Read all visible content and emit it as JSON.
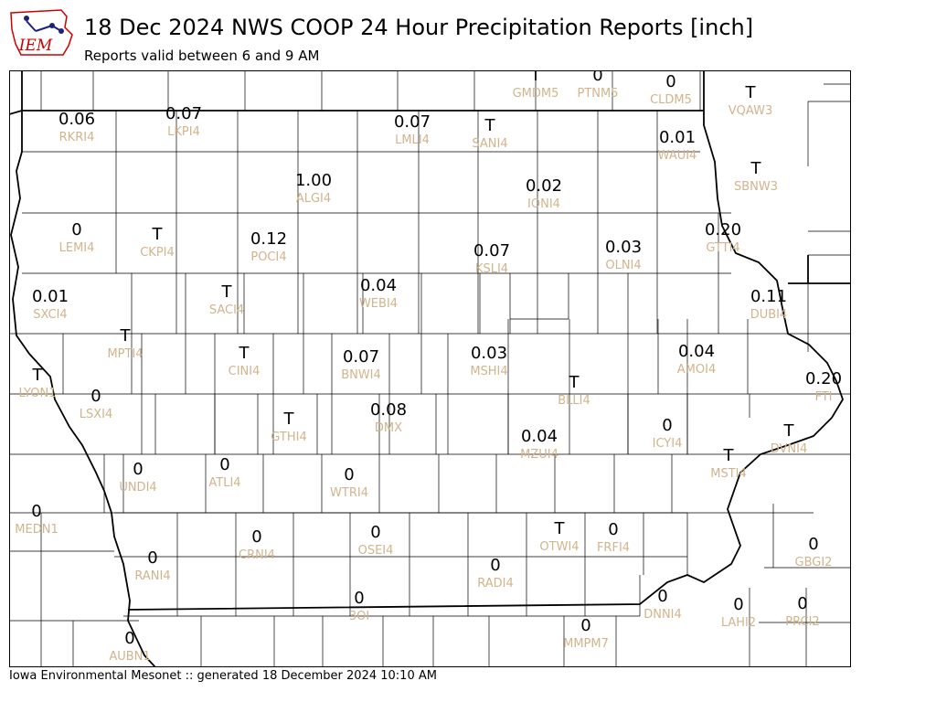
{
  "header": {
    "title": "18 Dec 2024 NWS COOP 24 Hour Precipitation Reports [inch]",
    "subtitle": "Reports valid between 6 and 9 AM",
    "logo_text": "IEM"
  },
  "footer": {
    "text": "Iowa Environmental Mesonet :: generated 18 December 2024 10:10 AM"
  },
  "colors": {
    "value": "#000000",
    "station_id": "#d2b48c",
    "logo_red": "#cc0000",
    "logo_blue": "#1a237e"
  },
  "stations": [
    {
      "id": "GMDM5",
      "value": "T"
    },
    {
      "id": "PTNM5",
      "value": "0"
    },
    {
      "id": "CLDM5",
      "value": "0"
    },
    {
      "id": "VQAW3",
      "value": "T"
    },
    {
      "id": "RKRI4",
      "value": "0.06"
    },
    {
      "id": "LKPI4",
      "value": "0.07"
    },
    {
      "id": "LMLI4",
      "value": "0.07"
    },
    {
      "id": "SANI4",
      "value": "T"
    },
    {
      "id": "WAUI4",
      "value": "0.01"
    },
    {
      "id": "SBNW3",
      "value": "T"
    },
    {
      "id": "ALGI4",
      "value": "1.00"
    },
    {
      "id": "IONI4",
      "value": "0.02"
    },
    {
      "id": "LEMI4",
      "value": "0"
    },
    {
      "id": "CKPI4",
      "value": "T"
    },
    {
      "id": "POCI4",
      "value": "0.12"
    },
    {
      "id": "GTTI4",
      "value": "0.20"
    },
    {
      "id": "KSLI4",
      "value": "0.07"
    },
    {
      "id": "OLNI4",
      "value": "0.03"
    },
    {
      "id": "SXCI4",
      "value": "0.01"
    },
    {
      "id": "SACI4",
      "value": "T"
    },
    {
      "id": "WEBI4",
      "value": "0.04"
    },
    {
      "id": "DUBI4",
      "value": "0.11"
    },
    {
      "id": "MPTI4",
      "value": "T"
    },
    {
      "id": "CINI4",
      "value": "T"
    },
    {
      "id": "BNWI4",
      "value": "0.07"
    },
    {
      "id": "MSHI4",
      "value": "0.03"
    },
    {
      "id": "AMOI4",
      "value": "0.04"
    },
    {
      "id": "LYON1",
      "value": "T"
    },
    {
      "id": "FTI",
      "value": "0.20"
    },
    {
      "id": "BLLI4",
      "value": "T"
    },
    {
      "id": "LSXI4",
      "value": "0"
    },
    {
      "id": "GTHI4",
      "value": "T"
    },
    {
      "id": "DMX",
      "value": "0.08"
    },
    {
      "id": "ICYI4",
      "value": "0"
    },
    {
      "id": "DVNI4",
      "value": "T"
    },
    {
      "id": "MZUI4",
      "value": "0.04"
    },
    {
      "id": "UNDI4",
      "value": "0"
    },
    {
      "id": "ATLI4",
      "value": "0"
    },
    {
      "id": "MSTI4",
      "value": "T"
    },
    {
      "id": "WTRI4",
      "value": "0"
    },
    {
      "id": "MEDN1",
      "value": "0"
    },
    {
      "id": "CRNI4",
      "value": "0"
    },
    {
      "id": "OSEI4",
      "value": "0"
    },
    {
      "id": "OTWI4",
      "value": "T"
    },
    {
      "id": "FRFI4",
      "value": "0"
    },
    {
      "id": "GBGI2",
      "value": "0"
    },
    {
      "id": "RANI4",
      "value": "0"
    },
    {
      "id": "RADI4",
      "value": "0"
    },
    {
      "id": "DNNI4",
      "value": "0"
    },
    {
      "id": "3OI",
      "value": "0"
    },
    {
      "id": "LAHI2",
      "value": "0"
    },
    {
      "id": "PRCI2",
      "value": "0"
    },
    {
      "id": "MMPM7",
      "value": "0"
    },
    {
      "id": "AUBN1",
      "value": "0"
    }
  ]
}
